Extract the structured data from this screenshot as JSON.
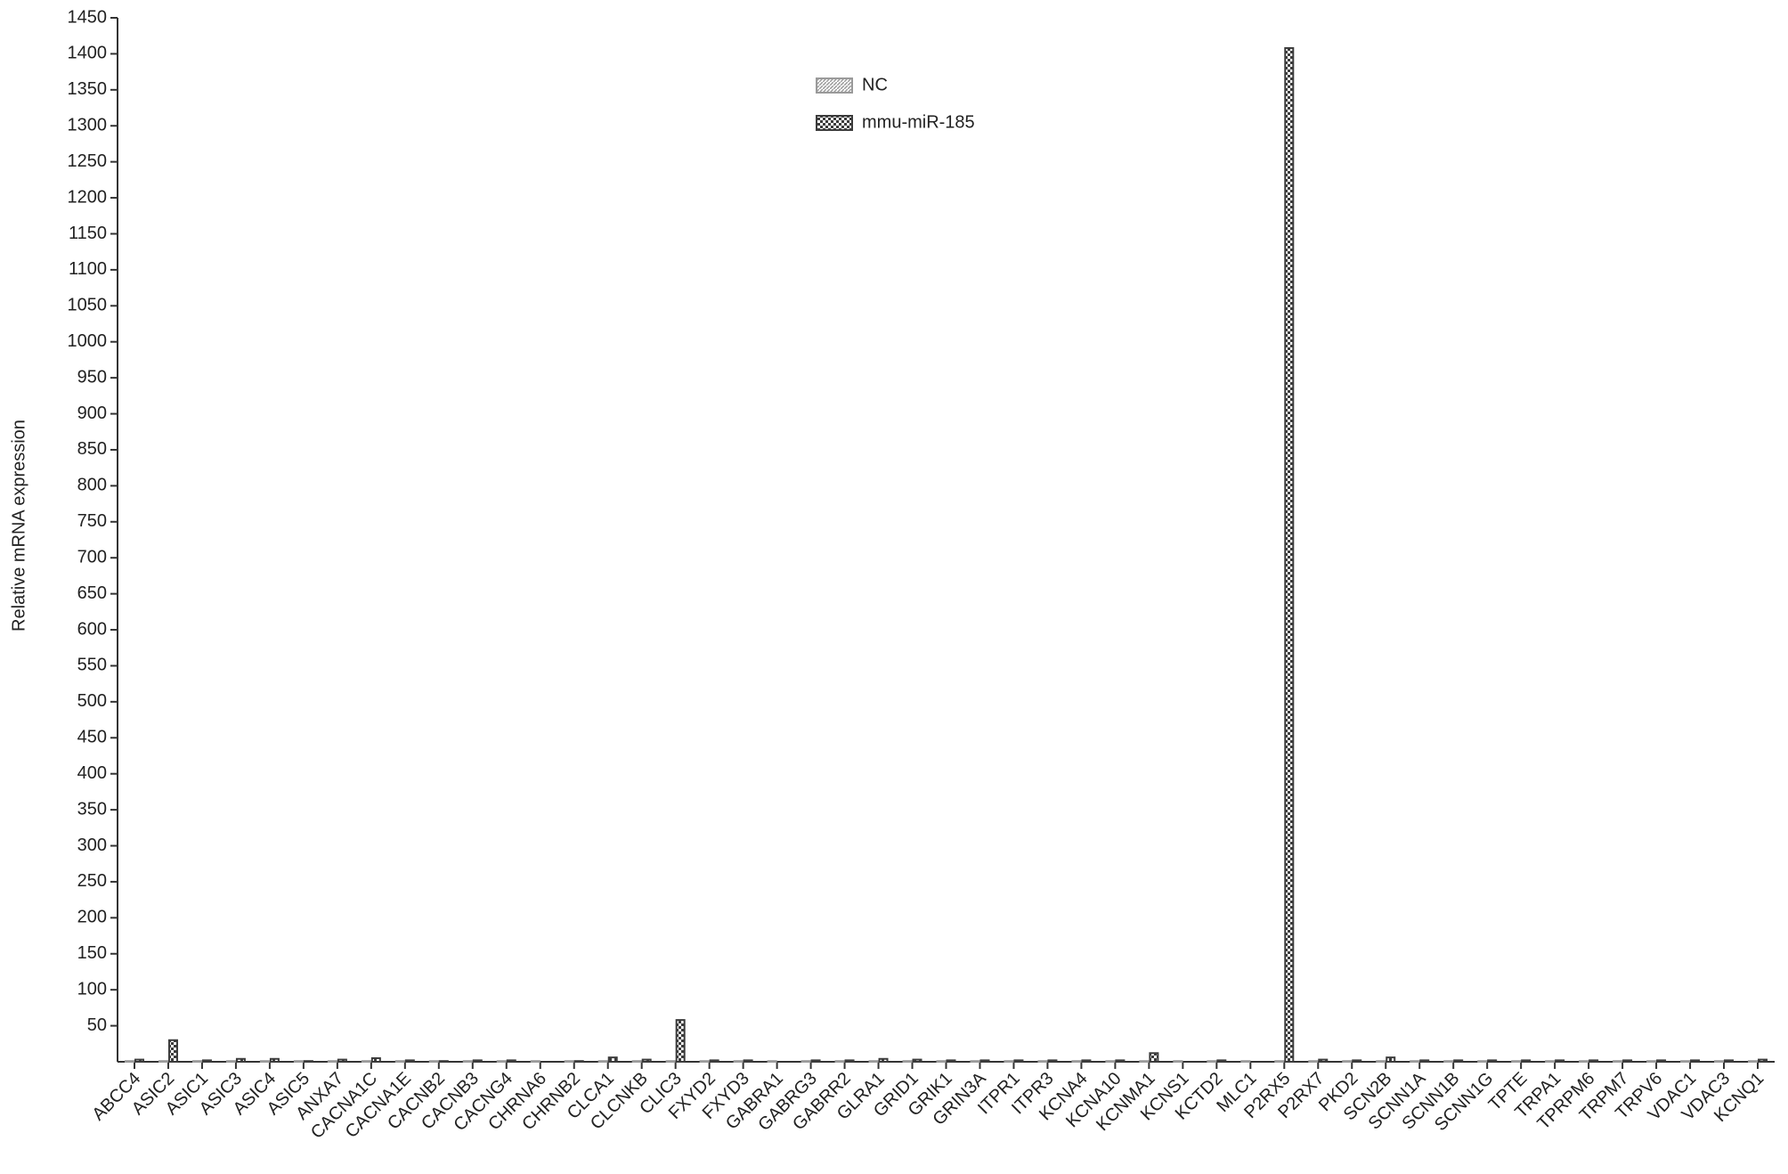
{
  "chart_data": {
    "type": "bar",
    "y_label": "Relative mRNA expression",
    "categories": [
      "ABCC4",
      "ASIC2",
      "ASIC1",
      "ASIC3",
      "ASIC4",
      "ASIC5",
      "ANXA7",
      "CACNA1C",
      "CACNA1E",
      "CACNB2",
      "CACNB3",
      "CACNG4",
      "CHRNA6",
      "CHRNB2",
      "CLCA1",
      "CLCNKB",
      "CLIC3",
      "FXYD2",
      "FXYD3",
      "GABRA1",
      "GABRG3",
      "GABRR2",
      "GLRA1",
      "GRID1",
      "GRIK1",
      "GRIN3A",
      "ITPR1",
      "ITPR3",
      "KCNA4",
      "KCNA10",
      "KCNMA1",
      "KCNS1",
      "KCTD2",
      "MLC1",
      "P2RX5",
      "P2RX7",
      "PKD2",
      "SCN2B",
      "SCNN1A",
      "SCNN1B",
      "SCNN1G",
      "TPTE",
      "TRPA1",
      "TPRPM6",
      "TRPM7",
      "TRPV6",
      "VDAC1",
      "VDAC3",
      "KCNQ1"
    ],
    "series": [
      {
        "name": "NC",
        "color": "#9a9a9a",
        "values": [
          1,
          1,
          1,
          1,
          1,
          1,
          1,
          1,
          1,
          1,
          1,
          1,
          1,
          1,
          1,
          1,
          1,
          1,
          1,
          1,
          1,
          1,
          1,
          1,
          1,
          1,
          1,
          1,
          1,
          1,
          1,
          1,
          1,
          1,
          1,
          1,
          1,
          1,
          1,
          1,
          1,
          1,
          1,
          1,
          1,
          1,
          1,
          1,
          1
        ]
      },
      {
        "name": "mmu-miR-185",
        "color": "#3c3c3c",
        "values": [
          3,
          30,
          2,
          4,
          4,
          1,
          3,
          5,
          2,
          1,
          2,
          2,
          0,
          1,
          6,
          3,
          58,
          2,
          2,
          0,
          2,
          2,
          4,
          3,
          2,
          2,
          2,
          2,
          2,
          2,
          12,
          0,
          2,
          0,
          1408,
          3,
          2,
          6,
          2,
          2,
          2,
          2,
          2,
          2,
          2,
          2,
          2,
          2,
          3
        ]
      }
    ],
    "ylim": [
      0,
      1450
    ],
    "yticks": [
      50,
      100,
      150,
      200,
      250,
      300,
      350,
      400,
      450,
      500,
      550,
      600,
      650,
      700,
      750,
      800,
      850,
      900,
      950,
      1000,
      1050,
      1100,
      1150,
      1200,
      1250,
      1300,
      1350,
      1400,
      1450
    ],
    "legend": "top-center"
  }
}
